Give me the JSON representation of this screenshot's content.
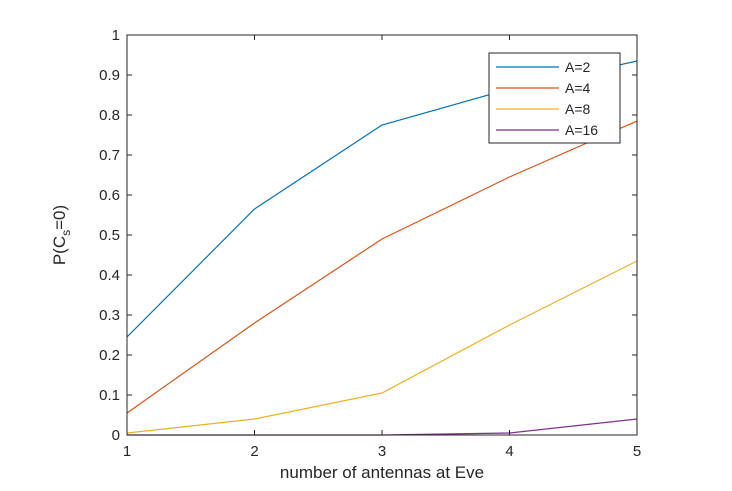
{
  "chart_data": {
    "type": "line",
    "title": "",
    "xlabel": "number of antennas at Eve",
    "ylabel_parts": {
      "prefix": "P(C",
      "subscript": "s",
      "suffix": "=0)"
    },
    "x": [
      1,
      2,
      3,
      4,
      5
    ],
    "xlim": [
      1,
      5
    ],
    "ylim": [
      0,
      1
    ],
    "xticks": [
      1,
      2,
      3,
      4,
      5
    ],
    "xtick_labels": [
      "1",
      "2",
      "3",
      "4",
      "5"
    ],
    "yticks": [
      0,
      0.1,
      0.2,
      0.3,
      0.4,
      0.5,
      0.6,
      0.7,
      0.8,
      0.9,
      1
    ],
    "ytick_labels": [
      "0",
      "0.1",
      "0.2",
      "0.3",
      "0.4",
      "0.5",
      "0.6",
      "0.7",
      "0.8",
      "0.9",
      "1"
    ],
    "grid": false,
    "legend_position": "top-right",
    "series": [
      {
        "name": "A=2",
        "color": "#0072BD",
        "values": [
          0.245,
          0.565,
          0.775,
          0.865,
          0.935
        ]
      },
      {
        "name": "A=4",
        "color": "#D95319",
        "values": [
          0.055,
          0.28,
          0.49,
          0.645,
          0.785
        ]
      },
      {
        "name": "A=8",
        "color": "#EDB120",
        "values": [
          0.005,
          0.04,
          0.105,
          0.275,
          0.435
        ]
      },
      {
        "name": "A=16",
        "color": "#7E2F8E",
        "values": [
          0,
          0,
          0,
          0.005,
          0.04
        ]
      }
    ]
  }
}
